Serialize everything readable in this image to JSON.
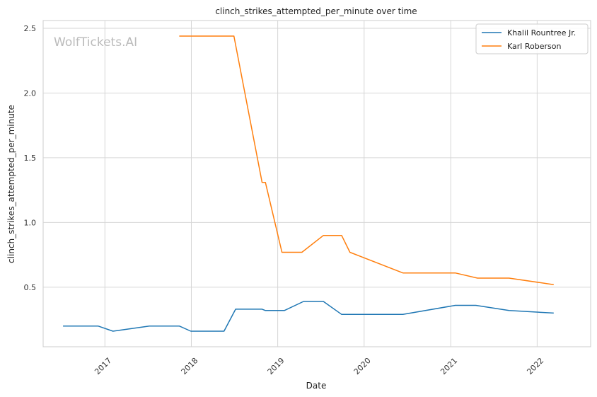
{
  "chart_data": {
    "type": "line",
    "title": "clinch_strikes_attempted_per_minute over time",
    "xlabel": "Date",
    "ylabel": "clinch_strikes_attempted_per_minute",
    "watermark": "WolfTickets.AI",
    "grid": true,
    "legend_position": "top-right",
    "xlim": [
      "2016-04-15",
      "2022-08-15"
    ],
    "ylim": [
      0.04,
      2.56
    ],
    "x_ticks": [
      {
        "date": "2017-01-01",
        "label": "2017"
      },
      {
        "date": "2018-01-01",
        "label": "2018"
      },
      {
        "date": "2019-01-01",
        "label": "2019"
      },
      {
        "date": "2020-01-01",
        "label": "2020"
      },
      {
        "date": "2021-01-01",
        "label": "2021"
      },
      {
        "date": "2022-01-01",
        "label": "2022"
      }
    ],
    "y_ticks": [
      {
        "value": 0.5,
        "label": "0.5"
      },
      {
        "value": 1.0,
        "label": "1.0"
      },
      {
        "value": 1.5,
        "label": "1.5"
      },
      {
        "value": 2.0,
        "label": "2.0"
      },
      {
        "value": 2.5,
        "label": "2.5"
      }
    ],
    "series": [
      {
        "name": "Khalil Rountree Jr.",
        "color": "#1f77b4",
        "points": [
          {
            "x": "2016-07-08",
            "y": 0.2
          },
          {
            "x": "2016-12-03",
            "y": 0.2
          },
          {
            "x": "2017-02-04",
            "y": 0.16
          },
          {
            "x": "2017-07-08",
            "y": 0.2
          },
          {
            "x": "2017-11-11",
            "y": 0.2
          },
          {
            "x": "2017-12-30",
            "y": 0.16
          },
          {
            "x": "2018-05-19",
            "y": 0.16
          },
          {
            "x": "2018-07-07",
            "y": 0.33
          },
          {
            "x": "2018-10-27",
            "y": 0.33
          },
          {
            "x": "2018-11-10",
            "y": 0.32
          },
          {
            "x": "2019-01-29",
            "y": 0.32
          },
          {
            "x": "2019-04-20",
            "y": 0.39
          },
          {
            "x": "2019-07-13",
            "y": 0.39
          },
          {
            "x": "2019-09-28",
            "y": 0.29
          },
          {
            "x": "2020-06-13",
            "y": 0.29
          },
          {
            "x": "2021-01-20",
            "y": 0.36
          },
          {
            "x": "2021-04-17",
            "y": 0.36
          },
          {
            "x": "2021-09-04",
            "y": 0.32
          },
          {
            "x": "2022-03-12",
            "y": 0.3
          }
        ]
      },
      {
        "name": "Karl Roberson",
        "color": "#ff7f0e",
        "points": [
          {
            "x": "2017-11-11",
            "y": 2.44
          },
          {
            "x": "2018-06-30",
            "y": 2.44
          },
          {
            "x": "2018-10-27",
            "y": 1.31
          },
          {
            "x": "2018-11-10",
            "y": 1.31
          },
          {
            "x": "2019-01-19",
            "y": 0.77
          },
          {
            "x": "2019-04-13",
            "y": 0.77
          },
          {
            "x": "2019-07-13",
            "y": 0.9
          },
          {
            "x": "2019-09-28",
            "y": 0.9
          },
          {
            "x": "2019-11-02",
            "y": 0.77
          },
          {
            "x": "2020-06-13",
            "y": 0.61
          },
          {
            "x": "2021-01-20",
            "y": 0.61
          },
          {
            "x": "2021-04-24",
            "y": 0.57
          },
          {
            "x": "2021-09-04",
            "y": 0.57
          },
          {
            "x": "2022-03-12",
            "y": 0.52
          }
        ]
      }
    ]
  }
}
